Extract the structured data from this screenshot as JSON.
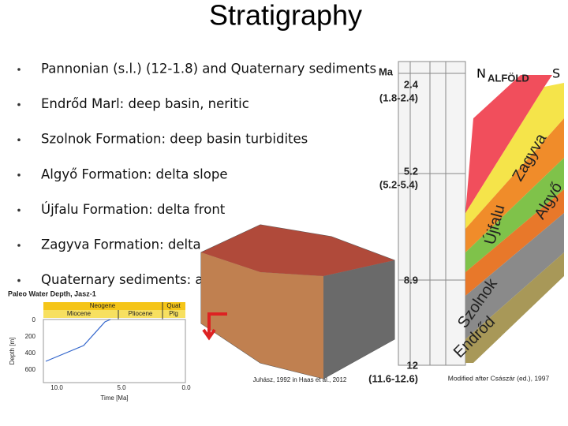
{
  "title": "Stratigraphy",
  "bullets": [
    "Pannonian (s.l.) (12-1.8) and Quaternary sediments",
    "Endrőd Marl: deep basin, neritic",
    "Szolnok Formation: deep basin turbidites",
    "Algyő Formation: delta slope",
    "Újfalu Formation: delta front",
    "Zagyva Formation: delta",
    "Quaternary sediments: a"
  ],
  "section": {
    "unit": "Ma",
    "north": "N",
    "region": "ALFÖLD",
    "south": "S",
    "ages": [
      {
        "age": "2.4",
        "range": "(1.8-2.4)"
      },
      {
        "age": "5.2",
        "range": "(5.2-5.4)"
      },
      {
        "age": "8.9"
      },
      {
        "age": "12",
        "range": "(11.6-12.6)"
      }
    ],
    "formations": [
      "Zagyva",
      "Algyő",
      "Újfalu",
      "Szolnok",
      "Endrőd"
    ],
    "credit": "Modified after Császár (ed.), 1997"
  },
  "block_credit": "Juhász, 1992 in Haas et al., 2012",
  "inset": {
    "title": "Paleo Water Depth, Jasz-1",
    "periods": [
      "Neogene",
      "Quat"
    ],
    "epochs": [
      "Miocene",
      "Pliocene",
      "Plg"
    ],
    "y_label": "Depth [m]",
    "y_ticks": [
      "0",
      "200",
      "400",
      "600"
    ],
    "x_label": "Time [Ma]",
    "x_ticks": [
      "10.0",
      "5.0",
      "0.0"
    ]
  }
}
